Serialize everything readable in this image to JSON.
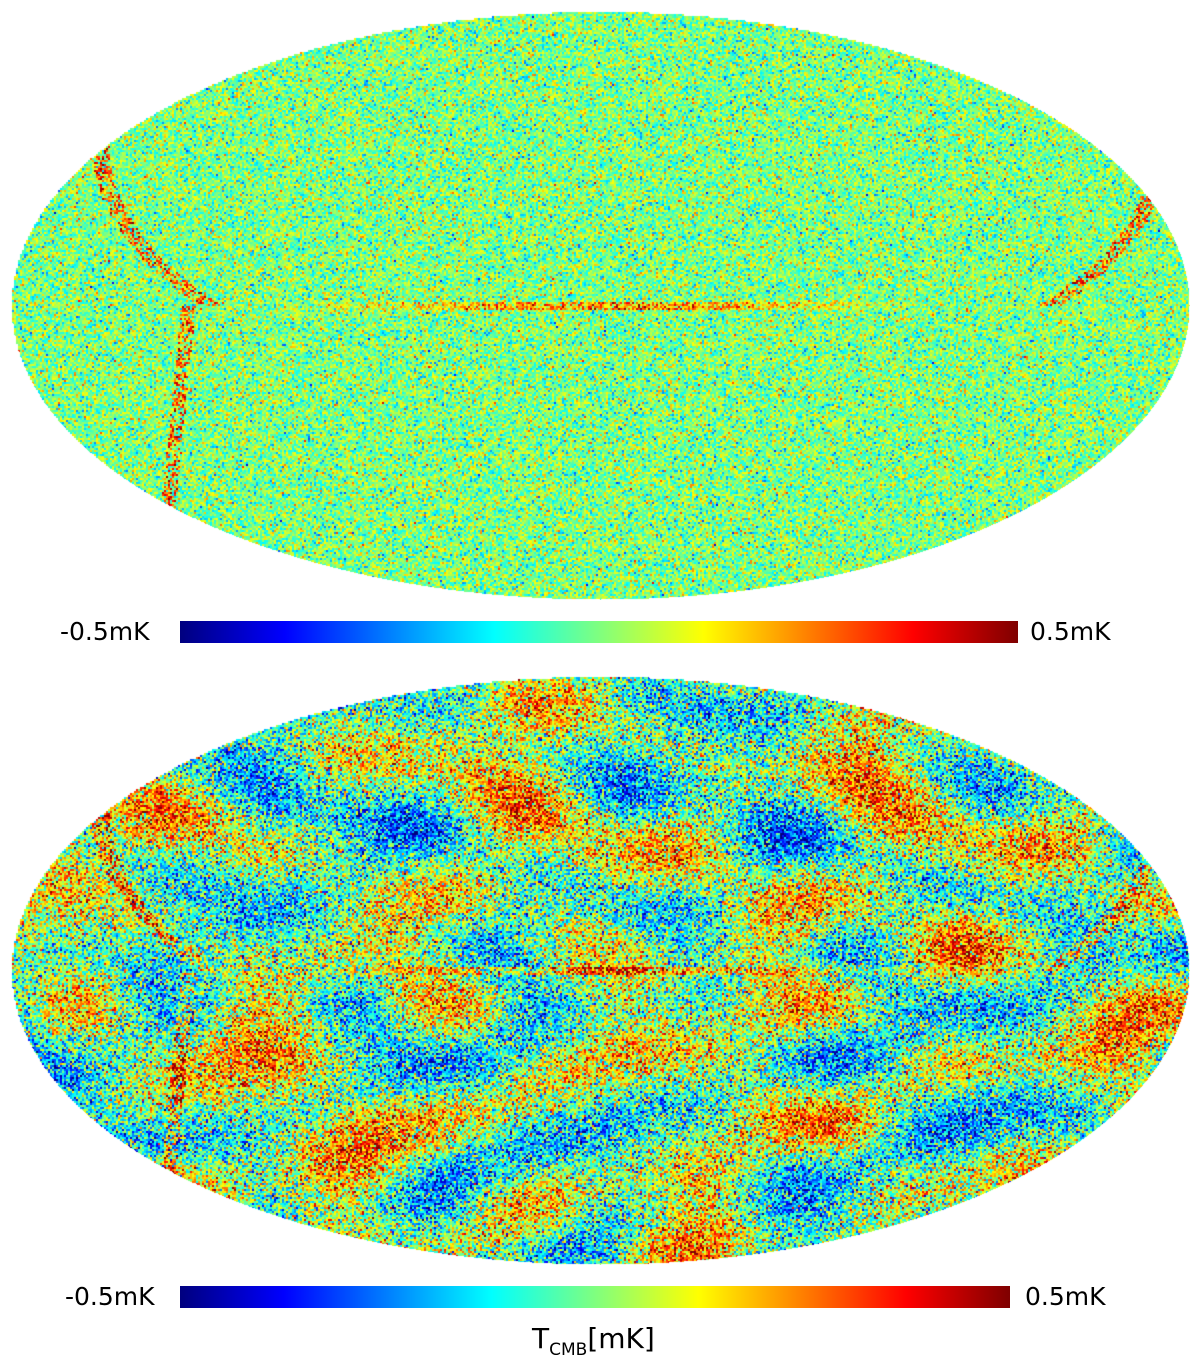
{
  "colormap": [
    "#00007f",
    "#0000ff",
    "#007fff",
    "#00ffff",
    "#7fff7f",
    "#ffff00",
    "#ff7f00",
    "#ff0000",
    "#7f0000"
  ],
  "chart_data": [
    {
      "type": "heatmap",
      "projection": "mollweide",
      "colorbar": {
        "min_label": "-0.5mK",
        "max_label": "0.5mK",
        "range": [
          -0.5,
          0.5
        ]
      },
      "description_level": "noise-dominated, small fluctuations around 0"
    },
    {
      "type": "heatmap",
      "projection": "mollweide",
      "colorbar": {
        "min_label": "-0.5mK",
        "max_label": "0.5mK",
        "range": [
          -0.5,
          0.5
        ]
      },
      "unit_label": {
        "main": "T",
        "sub": "CMB",
        "suffix": "[mK]"
      }
    }
  ]
}
